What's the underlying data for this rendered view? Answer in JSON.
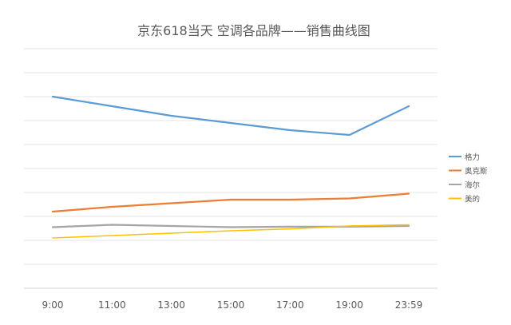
{
  "chart_data": {
    "type": "line",
    "title": "京东618当天 空调各品牌——销售曲线图",
    "xlabel": "",
    "ylabel": "",
    "categories": [
      "9:00",
      "11:00",
      "13:00",
      "15:00",
      "17:00",
      "19:00",
      "23:59"
    ],
    "ylim": [
      0,
      10
    ],
    "y_ticks_labeled": false,
    "grid": "horizontal",
    "legend_position": "right",
    "series": [
      {
        "name": "格力",
        "color": "#5B9BD5",
        "values": [
          8.0,
          7.6,
          7.2,
          6.9,
          6.6,
          6.4,
          7.6
        ]
      },
      {
        "name": "奥克斯",
        "color": "#ED7D31",
        "values": [
          3.2,
          3.4,
          3.55,
          3.7,
          3.7,
          3.75,
          3.95
        ]
      },
      {
        "name": "海尔",
        "color": "#A5A5A5",
        "values": [
          2.55,
          2.65,
          2.6,
          2.55,
          2.57,
          2.57,
          2.6
        ]
      },
      {
        "name": "美的",
        "color": "#FFC000",
        "values": [
          2.1,
          2.2,
          2.3,
          2.4,
          2.48,
          2.6,
          2.65
        ]
      }
    ]
  }
}
